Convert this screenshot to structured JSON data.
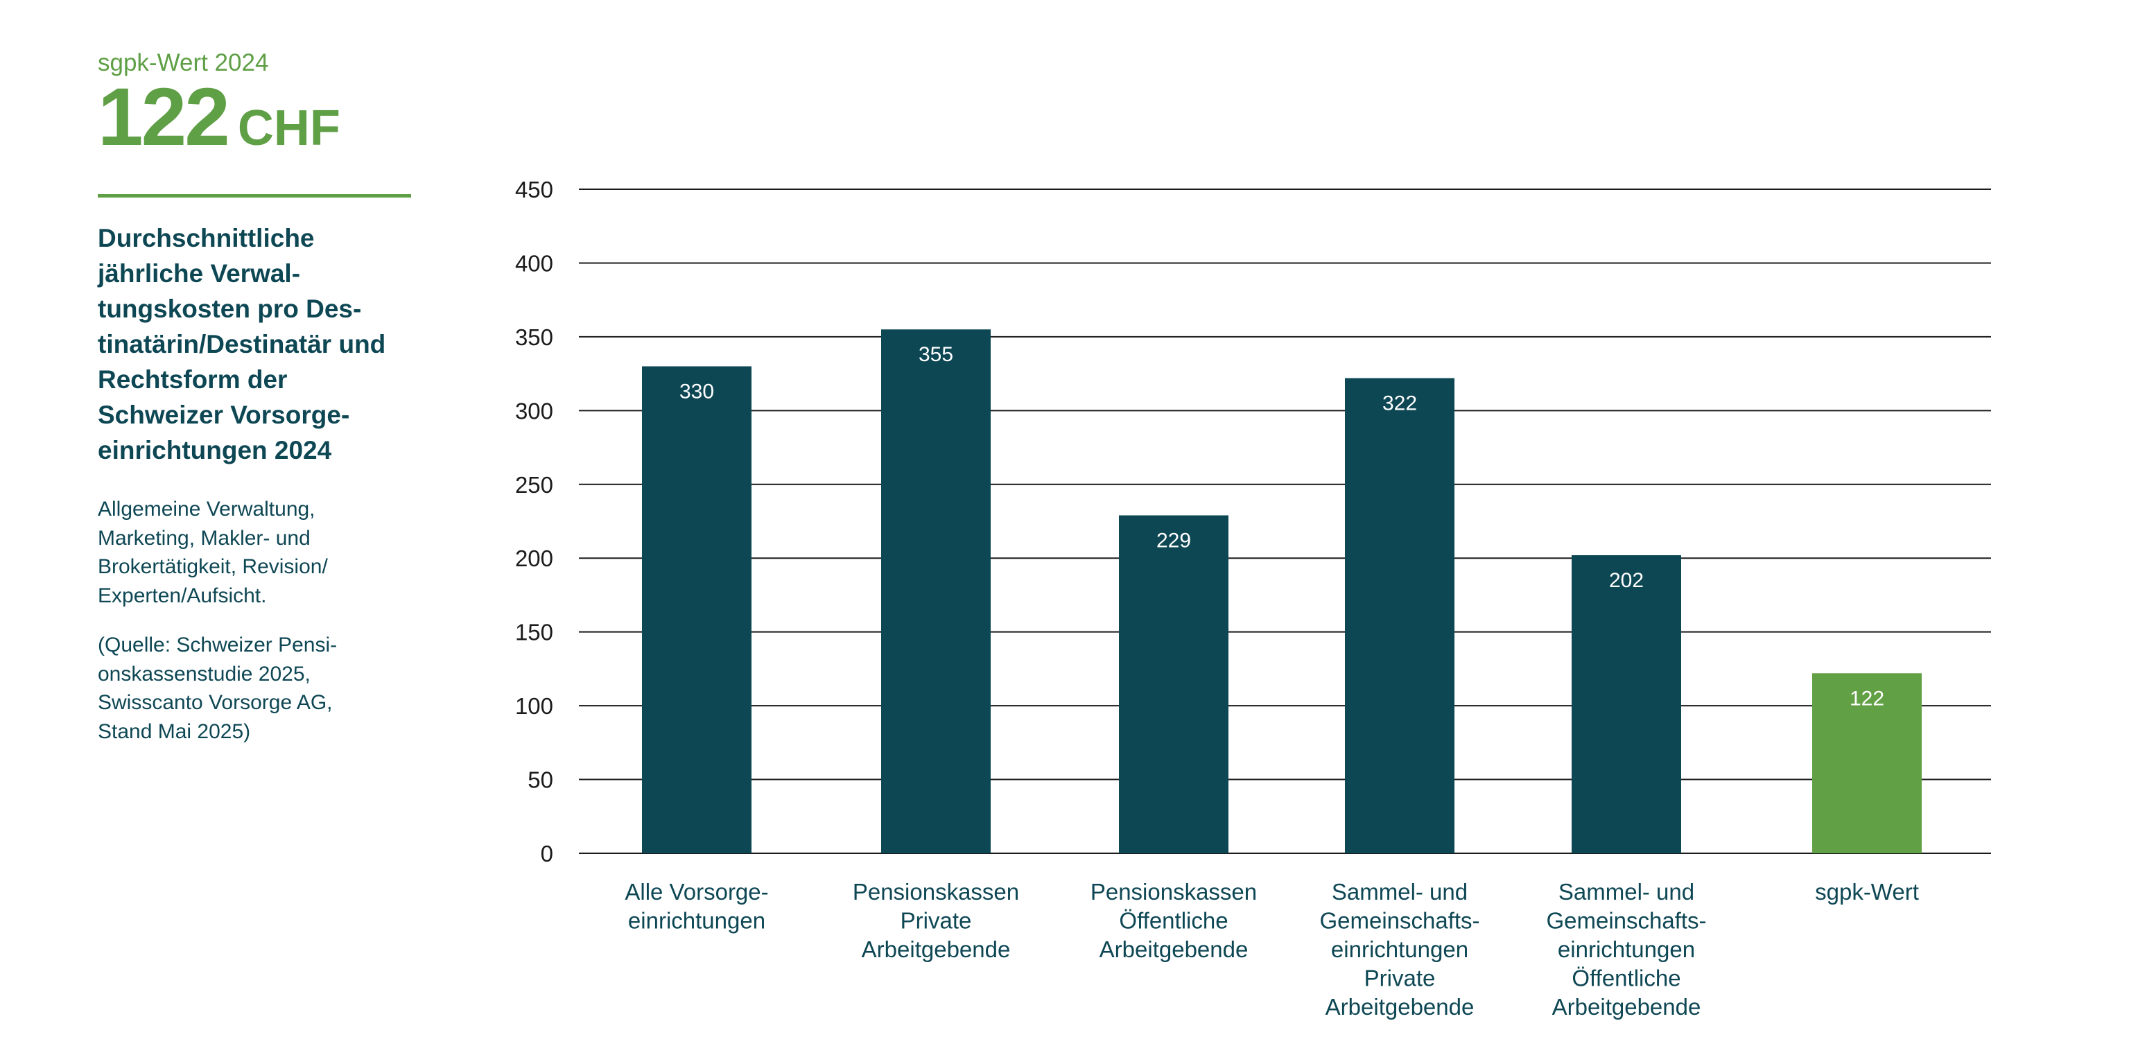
{
  "sidebar": {
    "kicker": "sgpk-Wert 2024",
    "value_number": "122",
    "value_unit": "CHF",
    "title": "Durchschnittliche jährliche Verwal­tungskosten pro Des­tinatärin/Destinatär und Rechtsform der Schweizer Vorsorge­einrichtungen 2024",
    "description": "Allgemeine Verwaltung, Marketing, Makler- und Brokertätigkeit, Revision/ Experten/Aufsicht.",
    "source": "(Quelle: Schweizer Pensi­onskassenstudie 2025, Swisscanto Vorsorge AG, Stand Mai 2025)"
  },
  "colors": {
    "dark_teal": "#0e4754",
    "green": "#62a045",
    "gridline": "#1b1b1b",
    "bar_label": "#ffffff"
  },
  "chart_data": {
    "type": "bar",
    "categories": [
      [
        "Alle Vorsorge-",
        "einrichtungen"
      ],
      [
        "Pensionskassen",
        "Private",
        "Arbeitgebende"
      ],
      [
        "Pensionskassen",
        "Öffentliche",
        "Arbeitgebende"
      ],
      [
        "Sammel- und",
        "Gemeinschafts-",
        "einrichtungen",
        "Private",
        "Arbeitgebende"
      ],
      [
        "Sammel- und",
        "Gemeinschafts-",
        "einrichtungen",
        "Öffentliche",
        "Arbeitgebende"
      ],
      [
        "sgpk-Wert"
      ]
    ],
    "values": [
      330,
      355,
      229,
      322,
      202,
      122
    ],
    "value_labels": [
      "330",
      "355",
      "229",
      "322",
      "202",
      "122"
    ],
    "bar_colors": [
      "dark_teal",
      "dark_teal",
      "dark_teal",
      "dark_teal",
      "dark_teal",
      "green"
    ],
    "ylim": [
      0,
      450
    ],
    "yticks": [
      0,
      50,
      100,
      150,
      200,
      250,
      300,
      350,
      400,
      450
    ],
    "grid": true,
    "legend": "none"
  }
}
